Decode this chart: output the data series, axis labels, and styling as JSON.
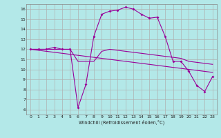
{
  "xlabel": "Windchill (Refroidissement éolien,°C)",
  "background_color": "#b3e8e8",
  "grid_color": "#b0b0b0",
  "line_color": "#990099",
  "hours": [
    0,
    1,
    2,
    3,
    4,
    5,
    6,
    7,
    8,
    9,
    10,
    11,
    12,
    13,
    14,
    15,
    16,
    17,
    18,
    19,
    20,
    21,
    22,
    23
  ],
  "temp": [
    12,
    12,
    12,
    12.2,
    12,
    12,
    6.2,
    8.5,
    13.3,
    15.5,
    15.8,
    15.9,
    16.2,
    16.0,
    15.5,
    15.1,
    15.2,
    13.3,
    10.8,
    10.8,
    9.8,
    8.4,
    7.8,
    9.3
  ],
  "windchill1": [
    12,
    12,
    12,
    12,
    12,
    12,
    10.8,
    10.8,
    10.8,
    11.8,
    12,
    11.9,
    11.8,
    11.7,
    11.6,
    11.5,
    11.4,
    11.3,
    11.2,
    11.1,
    10.8,
    10.7,
    10.6,
    10.5
  ],
  "windchill2": [
    12,
    11.9,
    11.8,
    11.7,
    11.6,
    11.5,
    11.4,
    11.3,
    11.2,
    11.1,
    11.0,
    10.9,
    10.8,
    10.7,
    10.6,
    10.5,
    10.4,
    10.3,
    10.2,
    10.1,
    10.0,
    9.9,
    9.8,
    9.7
  ],
  "xlim": [
    -0.5,
    23.5
  ],
  "ylim": [
    5.5,
    16.5
  ],
  "yticks": [
    6,
    7,
    8,
    9,
    10,
    11,
    12,
    13,
    14,
    15,
    16
  ],
  "xticks": [
    0,
    1,
    2,
    3,
    4,
    5,
    6,
    7,
    8,
    9,
    10,
    11,
    12,
    13,
    14,
    15,
    16,
    17,
    18,
    19,
    20,
    21,
    22,
    23
  ]
}
